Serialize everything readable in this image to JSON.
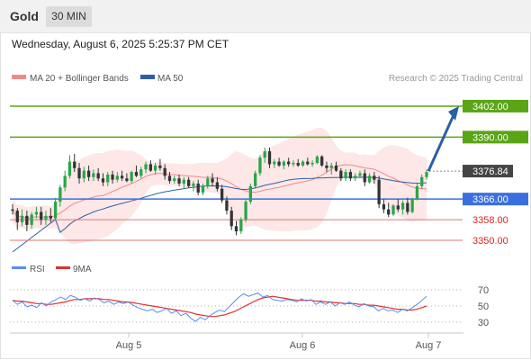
{
  "header": {
    "instrument": "Gold",
    "timeframe": "30 MIN",
    "datetime": "Wednesday, August 6, 2025 5:25:37 PM CET"
  },
  "legend": {
    "ma20": "MA 20 + Bollinger Bands",
    "ma50": "MA 50",
    "credit": "Research © 2025 Trading Central",
    "rsi": "RSI",
    "rsi_ma": "9MA"
  },
  "colors": {
    "target": "#5aa514",
    "pivot": "#3a6fe0",
    "support": "#e57373",
    "support_label": "#e02424",
    "arrow": "#2a5ea6",
    "ma20": "#f08a8a",
    "ma50": "#2f5fa5",
    "band": "#fde3e3",
    "candle_up": "#2aa64a",
    "candle_down": "#333333",
    "rsi": "#5b8def",
    "rsi_ma": "#e03030"
  },
  "chart_data": {
    "type": "candlestick",
    "ylim": [
      3342,
      3410
    ],
    "levels": [
      {
        "value": 3402.0,
        "label": "3402.00",
        "kind": "target"
      },
      {
        "value": 3390.0,
        "label": "3390.00",
        "kind": "target"
      },
      {
        "value": 3376.84,
        "label": "3376.84",
        "kind": "last"
      },
      {
        "value": 3366.0,
        "label": "3366.00",
        "kind": "pivot"
      },
      {
        "value": 3358.0,
        "label": "3358.00",
        "kind": "support"
      },
      {
        "value": 3350.0,
        "label": "3350.00",
        "kind": "support"
      }
    ],
    "x_ticks": [
      "Aug 5",
      "Aug 6",
      "Aug 7"
    ],
    "projection": {
      "from": 3376.84,
      "to": 3402.0
    },
    "candles": [
      [
        3362.0,
        3364.0,
        3360.0,
        3361.5
      ],
      [
        3361.5,
        3362.5,
        3354.0,
        3357.0
      ],
      [
        3357.0,
        3362.0,
        3355.5,
        3359.5
      ],
      [
        3359.5,
        3361.5,
        3353.5,
        3356.0
      ],
      [
        3356.0,
        3361.0,
        3354.5,
        3360.0
      ],
      [
        3360.0,
        3363.0,
        3358.5,
        3361.0
      ],
      [
        3361.0,
        3363.0,
        3356.0,
        3358.0
      ],
      [
        3358.0,
        3361.5,
        3356.0,
        3359.5
      ],
      [
        3359.5,
        3362.5,
        3357.0,
        3358.5
      ],
      [
        3358.5,
        3366.5,
        3357.5,
        3365.0
      ],
      [
        3365.0,
        3371.5,
        3363.0,
        3370.5
      ],
      [
        3370.5,
        3377.0,
        3369.0,
        3375.0
      ],
      [
        3375.0,
        3383.0,
        3374.0,
        3380.5
      ],
      [
        3380.5,
        3383.5,
        3376.5,
        3378.0
      ],
      [
        3378.0,
        3380.0,
        3372.0,
        3374.0
      ],
      [
        3374.0,
        3378.5,
        3372.5,
        3377.0
      ],
      [
        3377.0,
        3379.0,
        3373.0,
        3374.5
      ],
      [
        3374.5,
        3377.5,
        3373.0,
        3376.0
      ],
      [
        3376.0,
        3378.0,
        3373.0,
        3374.0
      ],
      [
        3374.0,
        3376.0,
        3371.0,
        3372.5
      ],
      [
        3372.5,
        3376.5,
        3371.0,
        3375.5
      ],
      [
        3375.5,
        3377.0,
        3372.0,
        3373.5
      ],
      [
        3373.5,
        3376.5,
        3372.5,
        3375.0
      ],
      [
        3375.0,
        3377.0,
        3373.0,
        3374.0
      ],
      [
        3374.0,
        3376.0,
        3372.5,
        3373.0
      ],
      [
        3373.0,
        3377.0,
        3372.0,
        3376.5
      ],
      [
        3376.5,
        3379.0,
        3374.5,
        3375.0
      ],
      [
        3375.0,
        3378.5,
        3374.0,
        3377.5
      ],
      [
        3377.5,
        3380.5,
        3376.0,
        3379.5
      ],
      [
        3379.5,
        3381.0,
        3376.5,
        3377.0
      ],
      [
        3377.0,
        3380.0,
        3375.5,
        3379.0
      ],
      [
        3379.0,
        3381.5,
        3377.0,
        3378.0
      ],
      [
        3378.0,
        3379.5,
        3373.5,
        3375.0
      ],
      [
        3375.0,
        3376.5,
        3372.0,
        3373.0
      ],
      [
        3373.0,
        3375.0,
        3372.0,
        3374.0
      ],
      [
        3374.0,
        3375.5,
        3371.0,
        3372.0
      ],
      [
        3372.0,
        3374.5,
        3370.0,
        3373.5
      ],
      [
        3373.5,
        3374.5,
        3370.5,
        3371.0
      ],
      [
        3371.0,
        3373.0,
        3369.0,
        3372.0
      ],
      [
        3372.0,
        3373.5,
        3367.5,
        3368.5
      ],
      [
        3368.5,
        3372.0,
        3367.5,
        3371.0
      ],
      [
        3371.0,
        3375.0,
        3370.0,
        3374.0
      ],
      [
        3374.0,
        3376.0,
        3371.0,
        3372.5
      ],
      [
        3372.5,
        3374.5,
        3369.0,
        3370.0
      ],
      [
        3370.0,
        3371.5,
        3364.5,
        3365.5
      ],
      [
        3365.5,
        3367.0,
        3360.0,
        3361.5
      ],
      [
        3361.5,
        3363.0,
        3354.0,
        3355.5
      ],
      [
        3355.5,
        3357.5,
        3352.0,
        3353.5
      ],
      [
        3353.5,
        3359.0,
        3352.5,
        3358.0
      ],
      [
        3358.0,
        3366.0,
        3357.0,
        3365.0
      ],
      [
        3365.0,
        3372.0,
        3364.0,
        3371.0
      ],
      [
        3371.0,
        3377.0,
        3370.0,
        3376.0
      ],
      [
        3376.0,
        3383.0,
        3375.0,
        3382.0
      ],
      [
        3382.0,
        3386.0,
        3380.0,
        3384.5
      ],
      [
        3384.5,
        3386.0,
        3378.0,
        3379.5
      ],
      [
        3379.5,
        3381.5,
        3378.0,
        3380.5
      ],
      [
        3380.5,
        3382.0,
        3378.5,
        3379.0
      ],
      [
        3379.0,
        3381.0,
        3377.5,
        3380.5
      ],
      [
        3380.5,
        3382.0,
        3378.5,
        3379.5
      ],
      [
        3379.5,
        3381.0,
        3378.5,
        3380.0
      ],
      [
        3380.0,
        3381.5,
        3378.5,
        3379.0
      ],
      [
        3379.0,
        3381.0,
        3378.5,
        3380.5
      ],
      [
        3380.5,
        3382.0,
        3379.0,
        3379.5
      ],
      [
        3379.5,
        3381.0,
        3378.5,
        3380.0
      ],
      [
        3380.0,
        3383.0,
        3379.5,
        3382.5
      ],
      [
        3382.5,
        3383.0,
        3378.5,
        3379.0
      ],
      [
        3379.0,
        3380.5,
        3376.5,
        3378.0
      ],
      [
        3378.0,
        3380.0,
        3375.5,
        3379.0
      ],
      [
        3379.0,
        3380.5,
        3376.5,
        3377.0
      ],
      [
        3377.0,
        3378.0,
        3373.0,
        3374.0
      ],
      [
        3374.0,
        3377.5,
        3373.0,
        3376.5
      ],
      [
        3376.5,
        3377.5,
        3373.0,
        3374.0
      ],
      [
        3374.0,
        3376.0,
        3373.0,
        3375.0
      ],
      [
        3375.0,
        3377.0,
        3374.0,
        3376.0
      ],
      [
        3376.0,
        3377.5,
        3371.0,
        3372.5
      ],
      [
        3372.5,
        3376.0,
        3372.0,
        3375.0
      ],
      [
        3375.0,
        3376.5,
        3372.0,
        3373.5
      ],
      [
        3373.5,
        3375.0,
        3362.5,
        3364.0
      ],
      [
        3364.0,
        3366.0,
        3360.5,
        3362.0
      ],
      [
        3362.0,
        3364.5,
        3359.0,
        3360.0
      ],
      [
        3360.0,
        3364.0,
        3359.5,
        3363.5
      ],
      [
        3363.5,
        3366.0,
        3361.0,
        3362.0
      ],
      [
        3362.0,
        3365.5,
        3360.0,
        3364.5
      ],
      [
        3364.5,
        3366.5,
        3360.0,
        3361.0
      ],
      [
        3361.0,
        3366.5,
        3360.5,
        3366.0
      ],
      [
        3366.0,
        3372.0,
        3365.5,
        3371.0
      ],
      [
        3371.0,
        3375.5,
        3370.0,
        3374.5
      ],
      [
        3374.5,
        3377.5,
        3373.5,
        3376.5
      ]
    ]
  },
  "rsi_data": {
    "ylim": [
      20,
      80
    ],
    "ticks": [
      70,
      50,
      30
    ],
    "rsi": [
      57,
      52,
      55,
      49,
      51,
      48,
      54,
      50,
      55,
      58,
      61,
      58,
      63,
      61,
      57,
      59,
      56,
      60,
      58,
      54,
      56,
      52,
      55,
      53,
      55,
      51,
      48,
      46,
      44,
      46,
      42,
      44,
      47,
      41,
      44,
      38,
      41,
      35,
      31,
      36,
      33,
      38,
      42,
      45,
      43,
      49,
      55,
      61,
      65,
      62,
      64,
      66,
      61,
      63,
      58,
      57,
      56,
      58,
      57,
      55,
      59,
      56,
      58,
      52,
      55,
      52,
      55,
      50,
      54,
      52,
      55,
      51,
      49,
      53,
      50,
      49,
      44,
      47,
      44,
      45,
      42,
      46,
      44,
      48,
      52,
      57,
      62
    ],
    "ma": [
      57,
      56,
      56,
      55,
      54,
      53,
      53,
      52,
      52,
      53,
      54,
      55,
      57,
      58,
      58,
      59,
      59,
      59,
      59,
      58,
      58,
      57,
      56,
      55,
      55,
      54,
      53,
      52,
      51,
      50,
      49,
      48,
      47,
      46,
      45,
      44,
      43,
      42,
      40,
      39,
      38,
      37,
      37,
      38,
      39,
      41,
      43,
      46,
      49,
      52,
      55,
      58,
      60,
      61,
      62,
      61,
      60,
      59,
      58,
      57,
      57,
      57,
      57,
      56,
      56,
      55,
      55,
      54,
      54,
      53,
      53,
      53,
      52,
      52,
      51,
      51,
      50,
      49,
      48,
      47,
      46,
      46,
      45,
      45,
      46,
      48,
      50
    ]
  }
}
